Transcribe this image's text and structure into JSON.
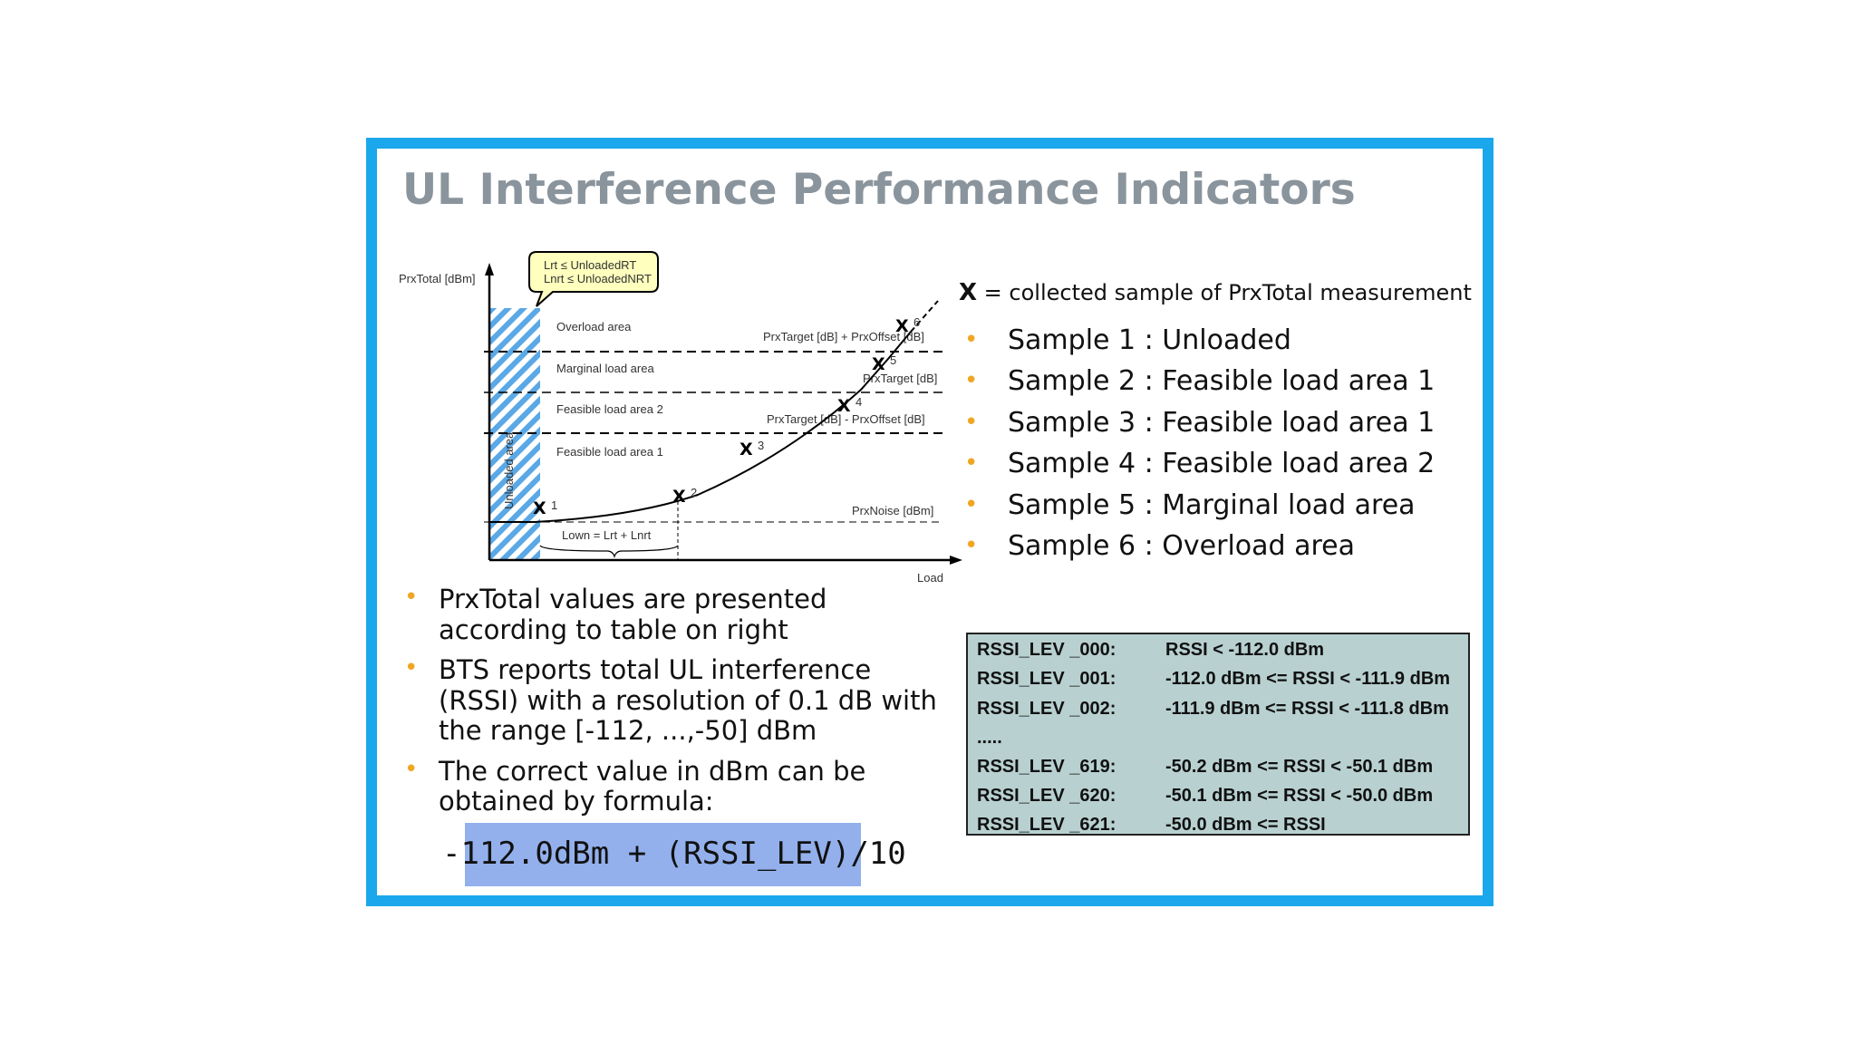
{
  "slide": {
    "title": "UL Interference Performance Indicators"
  },
  "diagram": {
    "y_axis_label": "PrxTotal [dBm]",
    "x_axis_label": "Load",
    "callout_line1": "Lrt ≤ UnloadedRT",
    "callout_line2": "Lnrt ≤ UnloadedNRT",
    "unloaded_area": "Unloaded area",
    "areas": [
      "Overload area",
      "Marginal load area",
      "Feasible load area 2",
      "Feasible load area 1"
    ],
    "threshold_labels": [
      "PrxTarget [dB] + PrxOffset [dB]",
      "PrxTarget [dB]",
      "PrxTarget [dB] - PrxOffset [dB]",
      "PrxNoise [dBm]"
    ],
    "lown_label": "Lown = Lrt + Lnrt",
    "sample_numbers": [
      "1",
      "2",
      "3",
      "4",
      "5",
      "6"
    ],
    "marker_glyph": "X"
  },
  "legend": {
    "symbol": "X",
    "text": " = collected sample of PrxTotal measurement"
  },
  "samples": [
    "Sample 1 : Unloaded",
    "Sample 2 : Feasible load area 1",
    "Sample 3 : Feasible load area 1",
    "Sample 4 : Feasible load area 2",
    "Sample 5 : Marginal load area",
    "Sample 6 : Overload area"
  ],
  "bullets": [
    "PrxTotal values are presented according to table on right",
    "BTS reports total UL interference (RSSI) with a resolution of 0.1 dB with the range [-112, ...,-50] dBm",
    "The correct value in dBm can be obtained by formula:"
  ],
  "formula": "-112.0dBm + (RSSI_LEV)/10",
  "rssi_table": [
    {
      "lev": "RSSI_LEV _000:",
      "range": "RSSI < -112.0 dBm"
    },
    {
      "lev": "RSSI_LEV _001:",
      "range": "-112.0 dBm <= RSSI < -111.9 dBm"
    },
    {
      "lev": "RSSI_LEV _002:",
      "range": "-111.9 dBm <= RSSI < -111.8 dBm"
    },
    {
      "lev": ".....",
      "range": ""
    },
    {
      "lev": "RSSI_LEV _619:",
      "range": "-50.2 dBm <= RSSI < -50.1 dBm"
    },
    {
      "lev": "RSSI_LEV _620:",
      "range": "-50.1 dBm <= RSSI < -50.0 dBm"
    },
    {
      "lev": "RSSI_LEV _621:",
      "range": " -50.0 dBm <= RSSI"
    }
  ],
  "colors": {
    "frame": "#1aa7ec",
    "title": "#8a949c",
    "bullet": "#f0a623",
    "highlight": "#93b0ec",
    "table_bg": "#b8d0d0",
    "hatch": "#5aa8e6"
  }
}
